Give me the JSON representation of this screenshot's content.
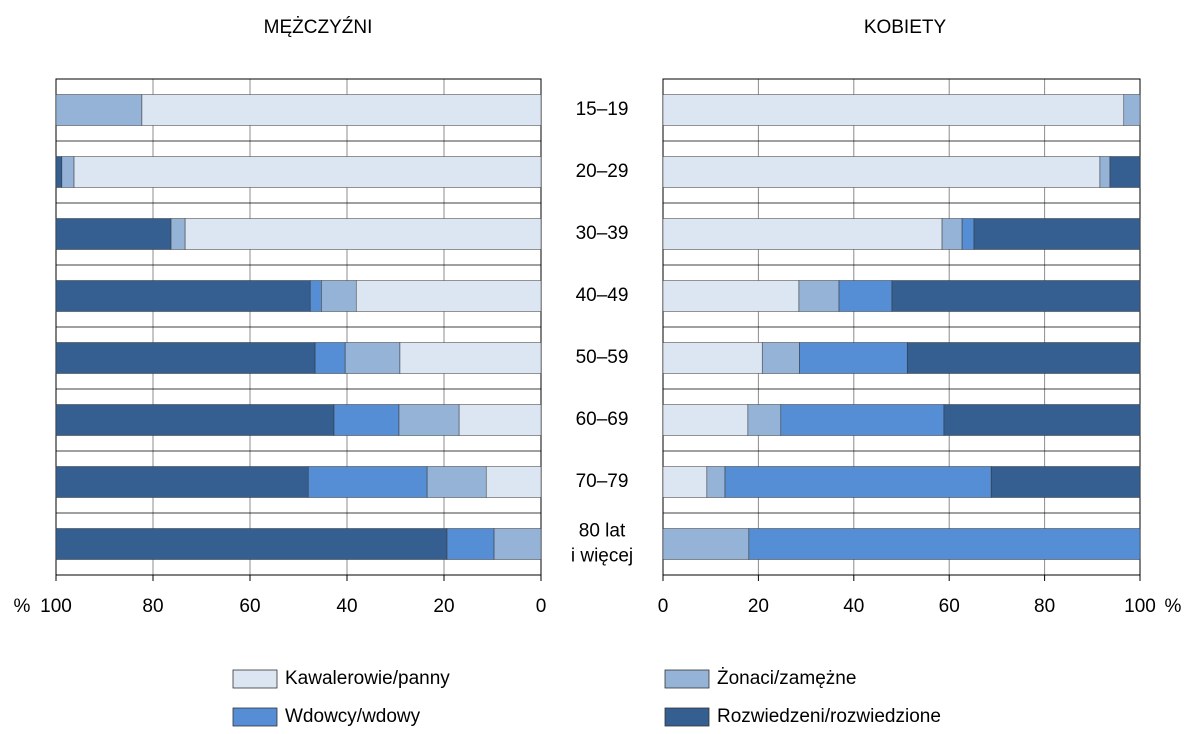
{
  "chart_data": [
    {
      "type": "bar",
      "orientation": "horizontal",
      "stacked": true,
      "title": "MĘŻCZYŹNI",
      "unit_label": "%",
      "categories": [
        "15–19",
        "20–29",
        "30–39",
        "40–49",
        "50–59",
        "60–69",
        "70–79",
        "80 lat\ni więcej"
      ],
      "xlim": [
        100,
        0
      ],
      "xticks": [
        100,
        80,
        60,
        40,
        20,
        0
      ],
      "grid": true,
      "series": [
        {
          "name": "Kawalerowie/panny",
          "color": "#dce6f2",
          "values": [
            82.3,
            96.3,
            73.4,
            38.1,
            29.1,
            16.9,
            11.3,
            0
          ]
        },
        {
          "name": "Żonaci/zamężne",
          "color": "#95b3d7",
          "values": [
            17.7,
            2.5,
            2.9,
            7.2,
            11.3,
            12.4,
            12.2,
            9.7
          ]
        },
        {
          "name": "Wdowcy/wdowy",
          "color": "#558ed5",
          "values": [
            0,
            0,
            0,
            2.3,
            6.2,
            13.4,
            24.5,
            9.7
          ]
        },
        {
          "name": "Rozwiedzeni/rozwiedzione",
          "color": "#365f91",
          "values": [
            0,
            1.2,
            23.7,
            52.4,
            53.4,
            57.3,
            52.0,
            80.6
          ]
        }
      ]
    },
    {
      "type": "bar",
      "orientation": "horizontal",
      "stacked": true,
      "title": "KOBIETY",
      "unit_label": "%",
      "xlim": [
        0,
        100
      ],
      "xticks": [
        0,
        20,
        40,
        60,
        80,
        100
      ],
      "grid": true,
      "series": [
        {
          "color": "#dce6f2",
          "values": [
            96.6,
            91.6,
            58.5,
            28.5,
            20.8,
            17.8,
            9.2,
            0
          ]
        },
        {
          "color": "#95b3d7",
          "values": [
            3.4,
            2.1,
            4.2,
            8.4,
            7.8,
            6.9,
            3.8,
            18.0
          ]
        },
        {
          "color": "#558ed5",
          "values": [
            0,
            0,
            2.5,
            11.1,
            22.6,
            34.2,
            55.8,
            82.0
          ]
        },
        {
          "color": "#365f91",
          "values": [
            0,
            6.3,
            34.8,
            52.0,
            48.8,
            41.1,
            31.2,
            0
          ]
        }
      ]
    }
  ]
}
